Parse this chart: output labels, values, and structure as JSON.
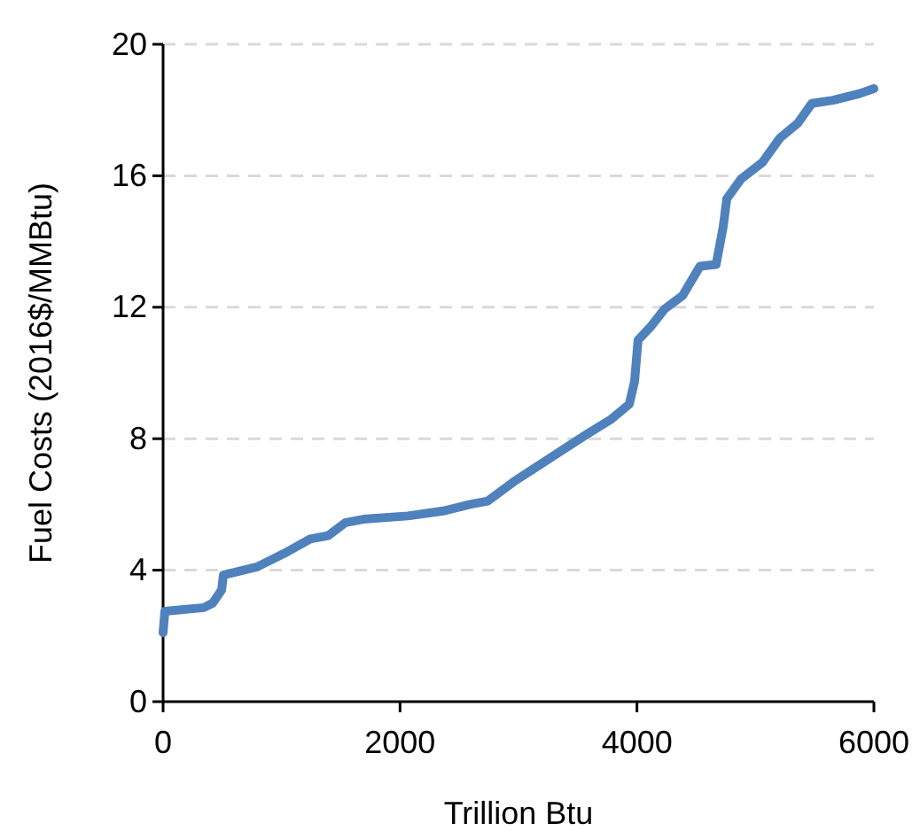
{
  "chart_data": {
    "type": "line",
    "xlabel": "Trillion Btu",
    "ylabel": "Fuel Costs (2016$/MMBtu)",
    "x": [
      0,
      15,
      344,
      419,
      494,
      509,
      793,
      1017,
      1242,
      1392,
      1541,
      1691,
      2065,
      2364,
      2589,
      2738,
      2963,
      3112,
      3411,
      3561,
      3785,
      3935,
      3980,
      4009,
      4114,
      4234,
      4384,
      4533,
      4668,
      4728,
      4758,
      4878,
      5057,
      5207,
      5357,
      5476,
      5656,
      5880,
      6000
    ],
    "series": [
      {
        "color": "#4f81bd",
        "values": [
          2.1,
          2.75,
          2.86,
          3.0,
          3.4,
          3.85,
          4.1,
          4.5,
          4.95,
          5.05,
          5.45,
          5.55,
          5.65,
          5.8,
          6.0,
          6.1,
          6.7,
          7.05,
          7.75,
          8.1,
          8.6,
          9.05,
          9.75,
          11.0,
          11.4,
          11.95,
          12.35,
          13.25,
          13.3,
          14.45,
          15.3,
          15.9,
          16.4,
          17.15,
          17.6,
          18.2,
          18.3,
          18.5,
          18.65
        ]
      }
    ],
    "xlim": [
      0,
      6000
    ],
    "xticks": [
      0,
      2000,
      4000,
      6000
    ],
    "ylim": [
      0,
      20
    ],
    "yticks": [
      0,
      4,
      8,
      12,
      16,
      20
    ],
    "grid": "y",
    "marker": "none",
    "line_style": "solid"
  }
}
